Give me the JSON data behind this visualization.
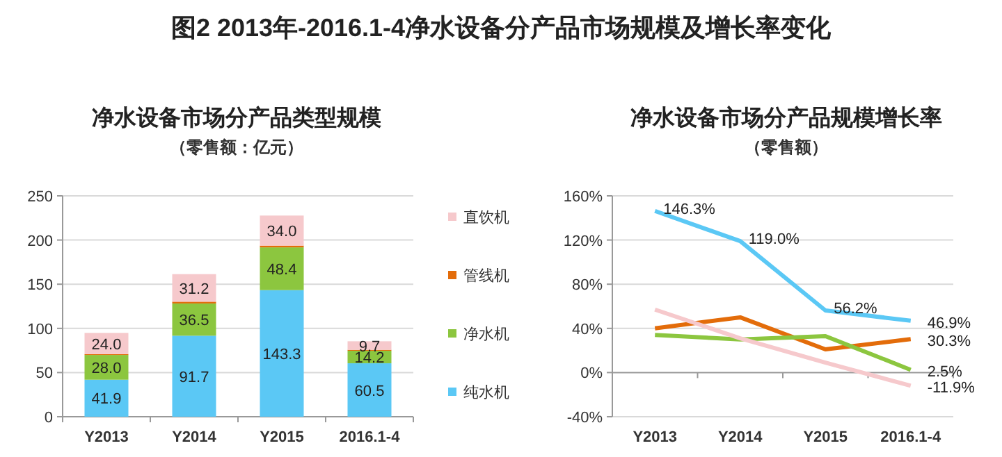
{
  "chart_data": [
    {
      "type": "bar",
      "stacked": true,
      "title": "净水设备市场分产品类型规模",
      "subtitle": "（零售额：亿元）",
      "annotations": [
        "图2  2013年-2016.1-4净水设备分产品市场规模及增长率变化"
      ],
      "categories": [
        "Y2013",
        "Y2014",
        "Y2015",
        "2016.1-4"
      ],
      "ylim": [
        0,
        250
      ],
      "yticks": [
        0,
        50,
        100,
        150,
        200,
        250
      ],
      "grid": "y",
      "legend": "right",
      "series": [
        {
          "name": "纯水机",
          "color": "#5bc8f5",
          "values": [
            41.9,
            91.7,
            143.3,
            60.5
          ],
          "value_labels": [
            "41.9",
            "91.7",
            "143.3",
            "60.5"
          ]
        },
        {
          "name": "净水机",
          "color": "#8cc63f",
          "values": [
            28.0,
            36.5,
            48.4,
            14.2
          ],
          "value_labels": [
            "28.0",
            "36.5",
            "48.4",
            "14.2"
          ]
        },
        {
          "name": "管线机",
          "color": "#e36c0a",
          "values": [
            1,
            2,
            2,
            1
          ],
          "value_labels": [
            null,
            null,
            null,
            null
          ]
        },
        {
          "name": "直饮机",
          "color": "#f6c9cc",
          "values": [
            24.0,
            31.2,
            34.0,
            9.7
          ],
          "value_labels": [
            "24.0",
            "31.2",
            "34.0",
            "9.7"
          ]
        }
      ]
    },
    {
      "type": "line",
      "title": "净水设备市场分产品规模增长率",
      "subtitle": "（零售额）",
      "categories": [
        "Y2013",
        "Y2014",
        "Y2015",
        "2016.1-4"
      ],
      "ylim": [
        -40,
        160
      ],
      "yticks": [
        {
          "value": -40,
          "label": "-40%"
        },
        {
          "value": 0,
          "label": "0%"
        },
        {
          "value": 40,
          "label": "40%"
        },
        {
          "value": 80,
          "label": "80%"
        },
        {
          "value": 120,
          "label": "120%"
        },
        {
          "value": 160,
          "label": "160%"
        }
      ],
      "grid": "y",
      "marker": "none",
      "series": [
        {
          "color": "#5bc8f5",
          "values": [
            146.3,
            119.0,
            56.2,
            46.9
          ],
          "value_labels": [
            "146.3%",
            "119.0%",
            "56.2%",
            "46.9%"
          ]
        },
        {
          "color": "#e36c0a",
          "values": [
            40,
            50,
            21,
            30.3
          ],
          "value_labels": [
            null,
            null,
            null,
            "30.3%"
          ]
        },
        {
          "color": "#8cc63f",
          "values": [
            34,
            30,
            33,
            2.5
          ],
          "value_labels": [
            null,
            null,
            null,
            "2.5%"
          ]
        },
        {
          "color": "#f6c9cc",
          "values": [
            57,
            31,
            9,
            -11.9
          ],
          "value_labels": [
            null,
            null,
            null,
            "-11.9%"
          ]
        }
      ]
    }
  ]
}
